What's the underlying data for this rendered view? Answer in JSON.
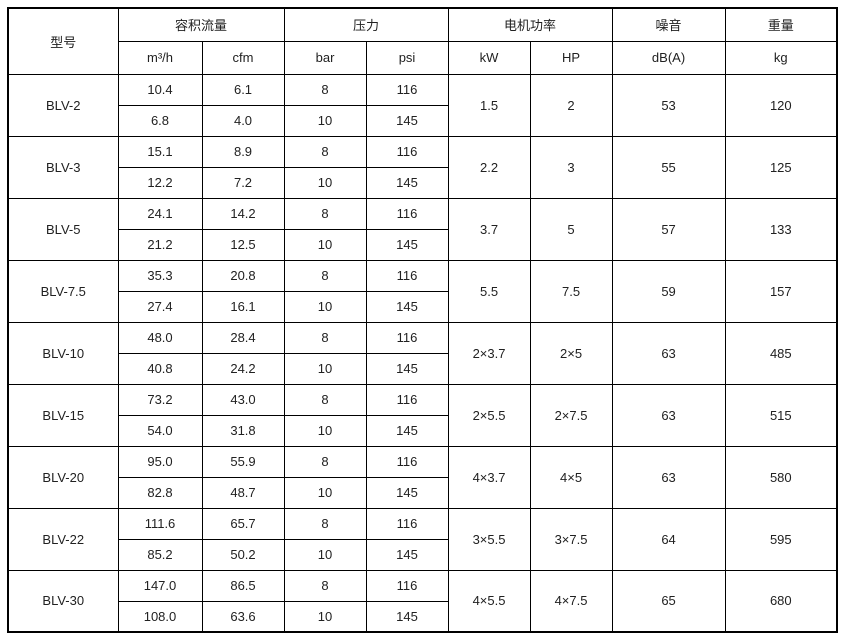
{
  "colors": {
    "background": "#ffffff",
    "border": "#000000",
    "text": "#212121"
  },
  "table": {
    "headers": {
      "model": "型号",
      "flow": "容积流量",
      "pressure": "压力",
      "power": "电机功率",
      "noise": "噪音",
      "weight": "重量",
      "unit_m3h": "m³/h",
      "unit_cfm": "cfm",
      "unit_bar": "bar",
      "unit_psi": "psi",
      "unit_kw": "kW",
      "unit_hp": "HP",
      "unit_dba": "dB(A)",
      "unit_kg": "kg"
    },
    "rows": [
      {
        "model": "BLV-2",
        "m3h_8": "10.4",
        "cfm_8": "6.1",
        "bar_8": "8",
        "psi_8": "116",
        "m3h_10": "6.8",
        "cfm_10": "4.0",
        "bar_10": "10",
        "psi_10": "145",
        "kw": "1.5",
        "hp": "2",
        "dba": "53",
        "kg": "120"
      },
      {
        "model": "BLV-3",
        "m3h_8": "15.1",
        "cfm_8": "8.9",
        "bar_8": "8",
        "psi_8": "116",
        "m3h_10": "12.2",
        "cfm_10": "7.2",
        "bar_10": "10",
        "psi_10": "145",
        "kw": "2.2",
        "hp": "3",
        "dba": "55",
        "kg": "125"
      },
      {
        "model": "BLV-5",
        "m3h_8": "24.1",
        "cfm_8": "14.2",
        "bar_8": "8",
        "psi_8": "116",
        "m3h_10": "21.2",
        "cfm_10": "12.5",
        "bar_10": "10",
        "psi_10": "145",
        "kw": "3.7",
        "hp": "5",
        "dba": "57",
        "kg": "133"
      },
      {
        "model": "BLV-7.5",
        "m3h_8": "35.3",
        "cfm_8": "20.8",
        "bar_8": "8",
        "psi_8": "116",
        "m3h_10": "27.4",
        "cfm_10": "16.1",
        "bar_10": "10",
        "psi_10": "145",
        "kw": "5.5",
        "hp": "7.5",
        "dba": "59",
        "kg": "157"
      },
      {
        "model": "BLV-10",
        "m3h_8": "48.0",
        "cfm_8": "28.4",
        "bar_8": "8",
        "psi_8": "116",
        "m3h_10": "40.8",
        "cfm_10": "24.2",
        "bar_10": "10",
        "psi_10": "145",
        "kw": "2×3.7",
        "hp": "2×5",
        "dba": "63",
        "kg": "485"
      },
      {
        "model": "BLV-15",
        "m3h_8": "73.2",
        "cfm_8": "43.0",
        "bar_8": "8",
        "psi_8": "116",
        "m3h_10": "54.0",
        "cfm_10": "31.8",
        "bar_10": "10",
        "psi_10": "145",
        "kw": "2×5.5",
        "hp": "2×7.5",
        "dba": "63",
        "kg": "515"
      },
      {
        "model": "BLV-20",
        "m3h_8": "95.0",
        "cfm_8": "55.9",
        "bar_8": "8",
        "psi_8": "116",
        "m3h_10": "82.8",
        "cfm_10": "48.7",
        "bar_10": "10",
        "psi_10": "145",
        "kw": "4×3.7",
        "hp": "4×5",
        "dba": "63",
        "kg": "580"
      },
      {
        "model": "BLV-22",
        "m3h_8": "111.6",
        "cfm_8": "65.7",
        "bar_8": "8",
        "psi_8": "116",
        "m3h_10": "85.2",
        "cfm_10": "50.2",
        "bar_10": "10",
        "psi_10": "145",
        "kw": "3×5.5",
        "hp": "3×7.5",
        "dba": "64",
        "kg": "595"
      },
      {
        "model": "BLV-30",
        "m3h_8": "147.0",
        "cfm_8": "86.5",
        "bar_8": "8",
        "psi_8": "116",
        "m3h_10": "108.0",
        "cfm_10": "63.6",
        "bar_10": "10",
        "psi_10": "145",
        "kw": "4×5.5",
        "hp": "4×7.5",
        "dba": "65",
        "kg": "680"
      }
    ]
  },
  "chart_data": {
    "type": "table",
    "title": "",
    "columns": [
      "型号",
      "容积流量 m³/h",
      "容积流量 cfm",
      "压力 bar",
      "压力 psi",
      "电机功率 kW",
      "电机功率 HP",
      "噪音 dB(A)",
      "重量 kg"
    ],
    "rows": [
      [
        "BLV-2",
        "10.4 / 6.8",
        "6.1 / 4.0",
        "8 / 10",
        "116 / 145",
        "1.5",
        "2",
        "53",
        "120"
      ],
      [
        "BLV-3",
        "15.1 / 12.2",
        "8.9 / 7.2",
        "8 / 10",
        "116 / 145",
        "2.2",
        "3",
        "55",
        "125"
      ],
      [
        "BLV-5",
        "24.1 / 21.2",
        "14.2 / 12.5",
        "8 / 10",
        "116 / 145",
        "3.7",
        "5",
        "57",
        "133"
      ],
      [
        "BLV-7.5",
        "35.3 / 27.4",
        "20.8 / 16.1",
        "8 / 10",
        "116 / 145",
        "5.5",
        "7.5",
        "59",
        "157"
      ],
      [
        "BLV-10",
        "48.0 / 40.8",
        "28.4 / 24.2",
        "8 / 10",
        "116 / 145",
        "2×3.7",
        "2×5",
        "63",
        "485"
      ],
      [
        "BLV-15",
        "73.2 / 54.0",
        "43.0 / 31.8",
        "8 / 10",
        "116 / 145",
        "2×5.5",
        "2×7.5",
        "63",
        "515"
      ],
      [
        "BLV-20",
        "95.0 / 82.8",
        "55.9 / 48.7",
        "8 / 10",
        "116 / 145",
        "4×3.7",
        "4×5",
        "63",
        "580"
      ],
      [
        "BLV-22",
        "111.6 / 85.2",
        "65.7 / 50.2",
        "8 / 10",
        "116 / 145",
        "3×5.5",
        "3×7.5",
        "64",
        "595"
      ],
      [
        "BLV-30",
        "147.0 / 108.0",
        "86.5 / 63.6",
        "8 / 10",
        "116 / 145",
        "4×5.5",
        "4×7.5",
        "65",
        "680"
      ]
    ]
  }
}
